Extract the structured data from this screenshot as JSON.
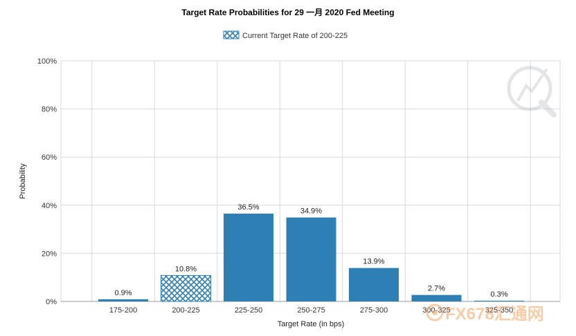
{
  "chart_data": {
    "type": "bar",
    "title": "Target Rate Probabilities for 29 一月 2020 Fed Meeting",
    "xlabel": "Target Rate (in bps)",
    "ylabel": "Probability",
    "ylim": [
      0,
      100
    ],
    "yticks": [
      "0%",
      "20%",
      "40%",
      "60%",
      "80%",
      "100%"
    ],
    "categories": [
      "175-200",
      "200-225",
      "225-250",
      "250-275",
      "275-300",
      "300-325",
      "325-350"
    ],
    "values": [
      0.9,
      10.8,
      36.5,
      34.9,
      13.9,
      2.7,
      0.3
    ],
    "data_labels": [
      "0.9%",
      "10.8%",
      "36.5%",
      "34.9%",
      "13.9%",
      "2.7%",
      "0.3%"
    ],
    "highlight_index": 1,
    "legend": {
      "label": "Current Target Rate of 200-225",
      "placement": "top-center"
    },
    "grid": true,
    "colors": {
      "bar": "#2e7fb3",
      "grid": "#d9d9d9",
      "axis": "#999999"
    }
  },
  "watermark": {
    "text": "FX678汇通网"
  }
}
